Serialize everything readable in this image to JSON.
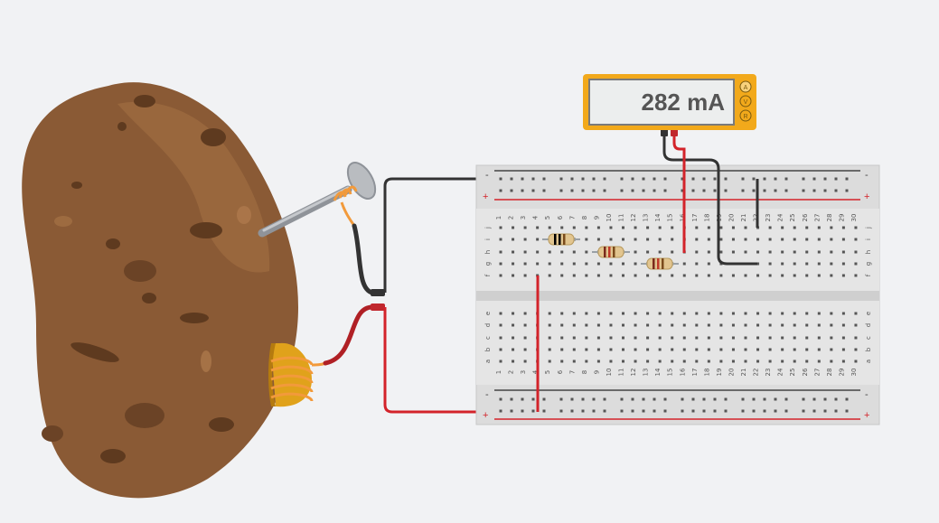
{
  "multimeter": {
    "reading": "282 mA",
    "modes": [
      "A",
      "V",
      "R"
    ],
    "selected_mode": "A",
    "colors": {
      "body": "#f2a91b",
      "screen": "#eceeee",
      "text": "#555555"
    }
  },
  "breadboard": {
    "columns": 30,
    "top_row_letters": [
      "j",
      "i",
      "h",
      "g",
      "f"
    ],
    "bottom_row_letters": [
      "e",
      "d",
      "c",
      "b",
      "a"
    ],
    "rail_minus": "-",
    "rail_plus": "+",
    "colors": {
      "board": "#dcdcdc",
      "rail_red": "#d3232a",
      "rail_black": "#444444",
      "hole": "#555555"
    }
  },
  "components": {
    "potato": {
      "color": "#8a5a35"
    },
    "nail_electrode": {
      "material": "zinc"
    },
    "coin_electrode": {
      "material": "copper"
    },
    "resistors": [
      {
        "bands": [
          "#000000",
          "#000000",
          "#7a4b1c"
        ]
      },
      {
        "bands": [
          "#7a2a1c",
          "#c0392b",
          "#7a4b1c"
        ]
      },
      {
        "bands": [
          "#7a2a1c",
          "#c0392b",
          "#7a4b1c"
        ]
      }
    ]
  },
  "wires": {
    "black": "#333333",
    "red": "#d3232a",
    "orange": "#f29a3b"
  }
}
